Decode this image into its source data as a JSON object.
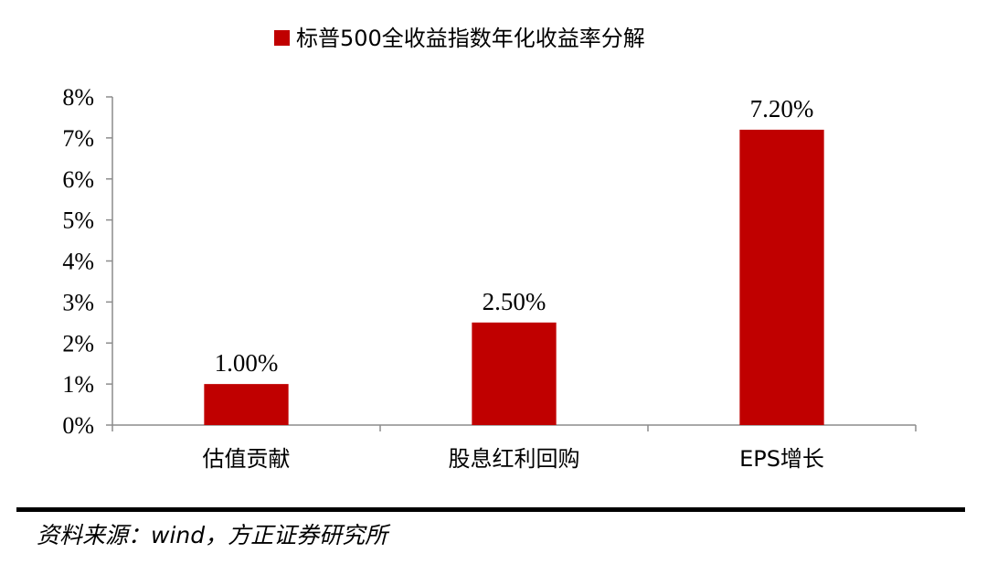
{
  "chart_data": {
    "type": "bar",
    "title": "",
    "legend": {
      "entries": [
        "标普500全收益指数年化收益率分解"
      ],
      "position": "top"
    },
    "categories": [
      "估值贡献",
      "股息红利回购",
      "EPS增长"
    ],
    "series": [
      {
        "name": "标普500全收益指数年化收益率分解",
        "values": [
          1.0,
          2.5,
          7.2
        ],
        "value_labels": [
          "1.00%",
          "2.50%",
          "7.20%"
        ],
        "color": "#C00000"
      }
    ],
    "xlabel": "",
    "ylabel": "",
    "ylim": [
      0,
      8
    ],
    "yticks": [
      0,
      1,
      2,
      3,
      4,
      5,
      6,
      7,
      8
    ],
    "ytick_labels": [
      "0%",
      "1%",
      "2%",
      "3%",
      "4%",
      "5%",
      "6%",
      "7%",
      "8%"
    ],
    "grid": false
  },
  "source": "资料来源：wind，方正证券研究所"
}
